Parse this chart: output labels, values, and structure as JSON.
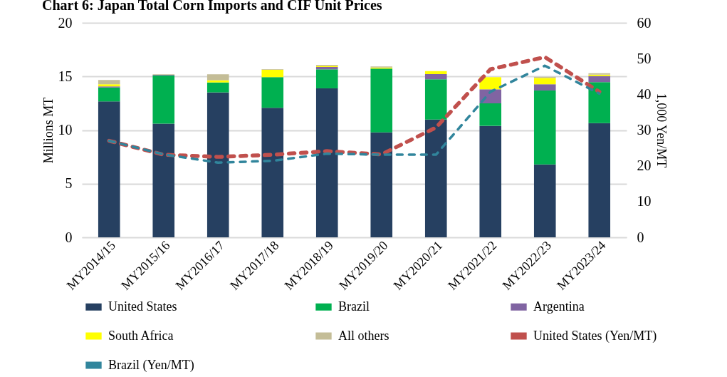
{
  "chart_data": {
    "type": "bar",
    "stacked": true,
    "title": "Chart 6: Japan Total Corn Imports and CIF Unit Prices",
    "ylabel": "Millions MT",
    "y2label": "1,000 Yen/MT",
    "categories": [
      "MY2014/15",
      "MY2015/16",
      "MY2016/17",
      "MY2017/18",
      "MY2018/19",
      "MY2019/20",
      "MY2020/21",
      "MY2021/22",
      "MY2022/23",
      "MY2023/24"
    ],
    "series": [
      {
        "name": "United States",
        "color": "#264061",
        "values": [
          12.67,
          10.6,
          13.51,
          12.07,
          13.89,
          9.79,
          10.98,
          10.39,
          6.8,
          10.65
        ]
      },
      {
        "name": "Brazil",
        "color": "#00b050",
        "values": [
          1.3,
          4.5,
          0.93,
          2.86,
          1.77,
          5.94,
          3.75,
          2.1,
          6.89,
          3.82
        ]
      },
      {
        "name": "Argentina",
        "color": "#8064a2",
        "values": [
          0.1,
          0.05,
          0,
          null,
          0.22,
          0,
          0.49,
          1.31,
          0.58,
          0.57
        ]
      },
      {
        "name": "South Africa",
        "color": "#ffff00",
        "values": [
          0.2,
          0,
          0.2,
          0.7,
          0.1,
          0.1,
          0.28,
          1.13,
          0.59,
          0.13
        ]
      },
      {
        "name": "All others",
        "color": "#c4bd97",
        "values": [
          0.4,
          0.05,
          0.56,
          0.05,
          0.1,
          0.1,
          0,
          null,
          0.1,
          0.13
        ]
      },
      {
        "name": "United States (Yen/MT)",
        "type": "line",
        "axis": "y2",
        "line_style": "dashed",
        "color": "#c0504d",
        "values": [
          27.0,
          23.1,
          22.5,
          23.1,
          24.1,
          23.2,
          30.7,
          47.0,
          50.4,
          40.7
        ]
      },
      {
        "name": "Brazil (Yen/MT)",
        "type": "line",
        "axis": "y2",
        "line_style": "dashed",
        "color": "#31859c",
        "values": [
          27.0,
          23.2,
          20.9,
          21.4,
          23.4,
          23.1,
          23.1,
          40.7,
          48.0,
          40.2
        ]
      }
    ],
    "ylim": [
      0,
      20
    ],
    "yticks": [
      0,
      5,
      10,
      15,
      20
    ],
    "y2lim": [
      0,
      60
    ],
    "y2ticks": [
      0,
      10,
      20,
      30,
      40,
      50,
      60
    ],
    "grid": "y",
    "legend": "bottom",
    "marker": "none"
  }
}
